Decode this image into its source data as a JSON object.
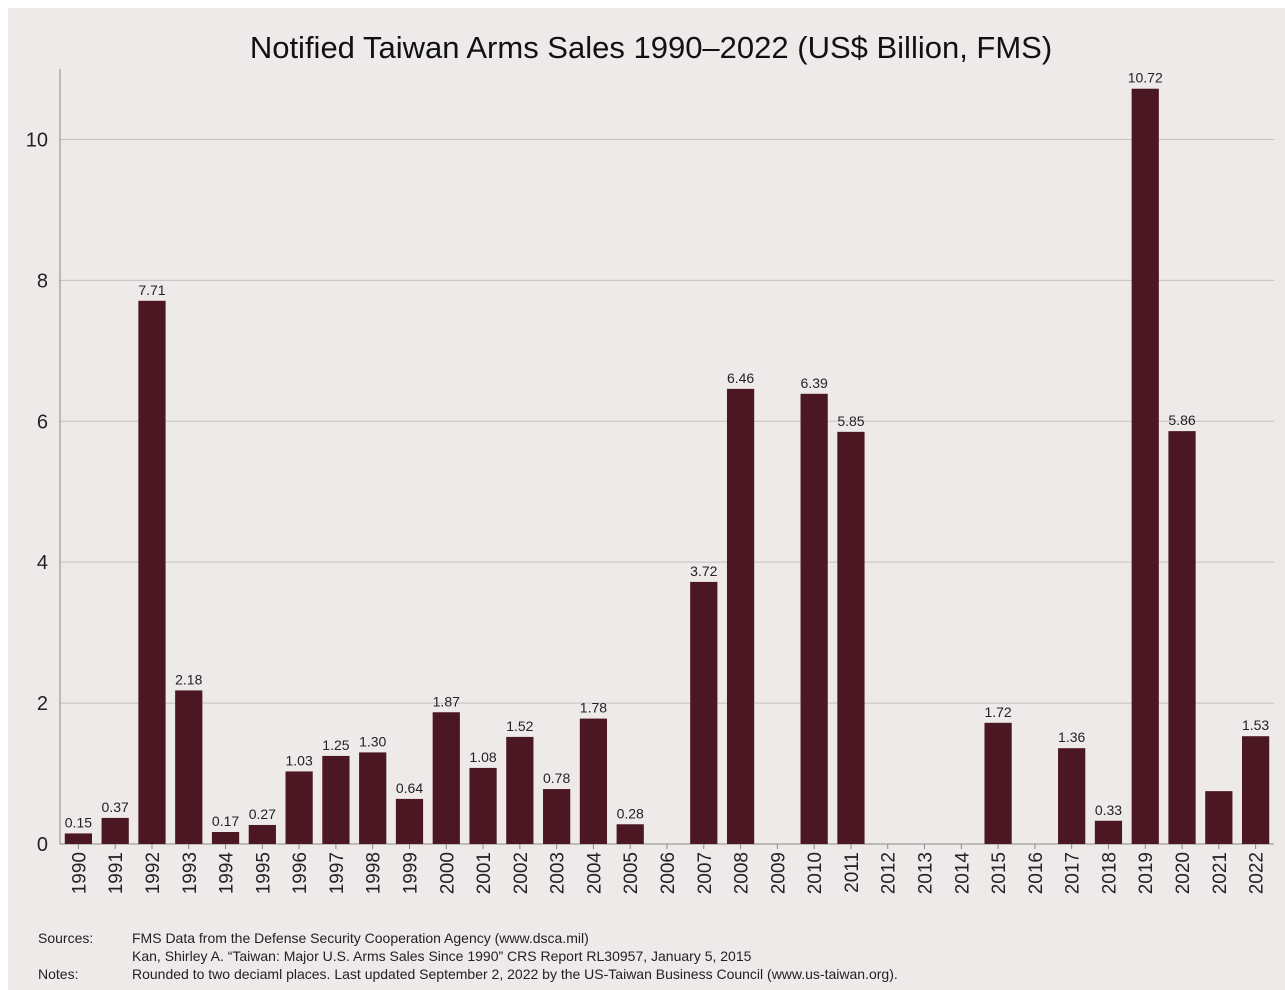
{
  "colors": {
    "background": "#eeeaea",
    "bar": "#4a1722",
    "grid": "#c4c0c0",
    "axis": "#8a8888"
  },
  "chart_data": {
    "type": "bar",
    "title": "Notified Taiwan Arms Sales 1990–2022 (US$ Billion, FMS)",
    "xlabel": "",
    "ylabel": "",
    "ylim": [
      0,
      11
    ],
    "yticks": [
      0,
      2,
      4,
      6,
      8,
      10
    ],
    "grid": true,
    "legend": "none",
    "categories": [
      "1990",
      "1991",
      "1992",
      "1993",
      "1994",
      "1995",
      "1996",
      "1997",
      "1998",
      "1999",
      "2000",
      "2001",
      "2002",
      "2003",
      "2004",
      "2005",
      "2006",
      "2007",
      "2008",
      "2009",
      "2010",
      "2011",
      "2012",
      "2013",
      "2014",
      "2015",
      "2016",
      "2017",
      "2018",
      "2019",
      "2020",
      "2021",
      "2022"
    ],
    "values": [
      0.15,
      0.37,
      7.71,
      2.18,
      0.17,
      0.27,
      1.03,
      1.25,
      1.3,
      0.64,
      1.87,
      1.08,
      1.52,
      0.78,
      1.78,
      0.28,
      0,
      3.72,
      6.46,
      0,
      6.39,
      5.85,
      0,
      0,
      0,
      1.72,
      0,
      1.36,
      0.33,
      10.72,
      5.86,
      0.75,
      1.53
    ],
    "data_labels": [
      "0.15",
      "0.37",
      "7.71",
      "2.18",
      "0.17",
      "0.27",
      "1.03",
      "1.25",
      "1.30",
      "0.64",
      "1.87",
      "1.08",
      "1.52",
      "0.78",
      "1.78",
      "0.28",
      "",
      "3.72",
      "6.46",
      "",
      "6.39",
      "5.85",
      "",
      "",
      "",
      "1.72",
      "",
      "1.36",
      "0.33",
      "10.72",
      "5.86",
      "",
      "1.53"
    ]
  },
  "footer": {
    "sources_label": "Sources:",
    "sources_line1": "FMS Data from the Defense Security Cooperation Agency (www.dsca.mil)",
    "sources_line2": "Kan, Shirley A. “Taiwan: Major U.S. Arms Sales Since 1990” CRS Report RL30957, January 5, 2015",
    "notes_label": "Notes:",
    "notes_text": "Rounded to two deciaml places. Last updated September 2, 2022 by the US-Taiwan Business Council (www.us-taiwan.org)."
  }
}
